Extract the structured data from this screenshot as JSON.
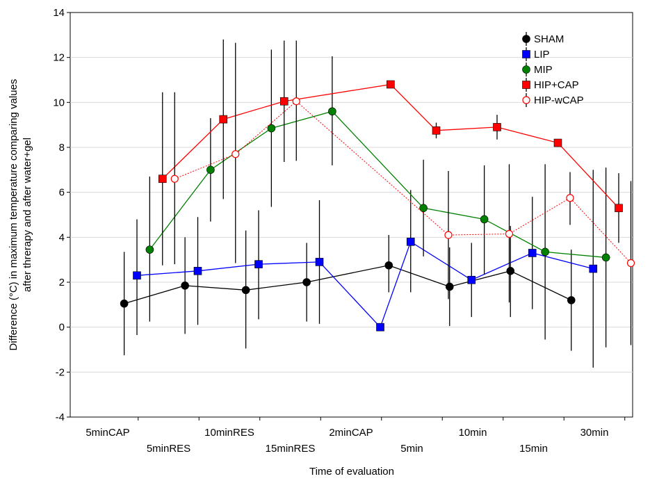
{
  "chart_data": {
    "type": "line",
    "title": "",
    "xlabel": "Time of evaluation",
    "ylabel_lines": [
      "Difference (°C) in maximum temperature comparing values",
      "after threrapy and after water+gel"
    ],
    "ylim": [
      -4,
      14
    ],
    "yticks": [
      -4,
      -2,
      0,
      2,
      4,
      6,
      8,
      10,
      12,
      14
    ],
    "ytick_labels": [
      "-4",
      "-2",
      "0",
      "2",
      "4",
      "6",
      "8",
      "10",
      "12",
      "14"
    ],
    "categories": [
      "5minCAP",
      "5minRES",
      "10minRES",
      "15minRES",
      "2minCAP",
      "5min",
      "10min",
      "15min",
      "30min"
    ],
    "grid": true,
    "legend_position": "top-right",
    "error_bars": "vertical whiskers",
    "series": [
      {
        "name": "SHAM",
        "color": "#000000",
        "marker": "circle-filled",
        "line_style": "solid",
        "points": [
          {
            "x": 0.27,
            "y": 1.05,
            "lo": -1.25,
            "hi": 3.35
          },
          {
            "x": 1.27,
            "y": 1.85,
            "lo": -0.3,
            "hi": 4.0
          },
          {
            "x": 2.27,
            "y": 1.65,
            "lo": -0.95,
            "hi": 4.3
          },
          {
            "x": 3.27,
            "y": 2.0,
            "lo": 0.25,
            "hi": 3.75
          },
          {
            "x": 4.62,
            "y": 2.75,
            "lo": 1.55,
            "hi": 4.1
          },
          {
            "x": 5.62,
            "y": 1.8,
            "lo": 0.05,
            "hi": 3.55
          },
          {
            "x": 6.62,
            "y": 2.5,
            "lo": 0.45,
            "hi": 4.5
          },
          {
            "x": 7.62,
            "y": 1.2,
            "lo": -1.05,
            "hi": 3.45
          }
        ]
      },
      {
        "name": "LIP",
        "color": "#0000ff",
        "marker": "square-filled",
        "line_style": "solid",
        "points": [
          {
            "x": 0.48,
            "y": 2.3,
            "lo": -0.35,
            "hi": 4.8
          },
          {
            "x": 1.48,
            "y": 2.5,
            "lo": 0.1,
            "hi": 4.9
          },
          {
            "x": 2.48,
            "y": 2.8,
            "lo": 0.35,
            "hi": 5.2
          },
          {
            "x": 3.48,
            "y": 2.9,
            "lo": 0.15,
            "hi": 5.65
          },
          {
            "x": 4.48,
            "y": 0.0,
            "lo": 0.0,
            "hi": 0.0
          },
          {
            "x": 4.98,
            "y": 3.8,
            "lo": 1.55,
            "hi": 6.1
          },
          {
            "x": 5.98,
            "y": 2.1,
            "lo": 0.45,
            "hi": 3.75
          },
          {
            "x": 6.98,
            "y": 3.3,
            "lo": 0.8,
            "hi": 5.8
          },
          {
            "x": 7.98,
            "y": 2.6,
            "lo": -1.8,
            "hi": 7.0
          }
        ]
      },
      {
        "name": "MIP",
        "color": "#008000",
        "marker": "circle-filled",
        "line_style": "solid",
        "points": [
          {
            "x": 0.69,
            "y": 3.45,
            "lo": 0.25,
            "hi": 6.7
          },
          {
            "x": 1.69,
            "y": 7.0,
            "lo": 4.7,
            "hi": 9.3
          },
          {
            "x": 2.69,
            "y": 8.85,
            "lo": 5.35,
            "hi": 12.35
          },
          {
            "x": 3.69,
            "y": 9.6,
            "lo": 7.2,
            "hi": 12.05
          },
          {
            "x": 5.19,
            "y": 5.3,
            "lo": 3.15,
            "hi": 7.45
          },
          {
            "x": 6.19,
            "y": 4.8,
            "lo": 2.35,
            "hi": 7.2
          },
          {
            "x": 7.19,
            "y": 3.35,
            "lo": -0.55,
            "hi": 7.25
          },
          {
            "x": 8.19,
            "y": 3.1,
            "lo": -0.9,
            "hi": 7.1
          }
        ]
      },
      {
        "name": "HIP+CAP",
        "color": "#ff0000",
        "marker": "square-filled",
        "line_style": "solid",
        "points": [
          {
            "x": 0.9,
            "y": 6.6,
            "lo": 2.75,
            "hi": 10.45
          },
          {
            "x": 1.9,
            "y": 9.25,
            "lo": 5.7,
            "hi": 12.8
          },
          {
            "x": 2.9,
            "y": 10.05,
            "lo": 7.35,
            "hi": 12.75
          },
          {
            "x": 4.65,
            "y": 10.8,
            "lo": 10.8,
            "hi": 10.8
          },
          {
            "x": 5.4,
            "y": 8.75,
            "lo": 8.4,
            "hi": 9.1
          },
          {
            "x": 6.4,
            "y": 8.9,
            "lo": 8.35,
            "hi": 9.45
          },
          {
            "x": 7.4,
            "y": 8.2,
            "lo": 8.2,
            "hi": 8.2
          },
          {
            "x": 8.4,
            "y": 5.3,
            "lo": 3.75,
            "hi": 6.85
          }
        ]
      },
      {
        "name": "HIP-wCAP",
        "color": "#ff0000",
        "marker": "circle-open",
        "line_style": "dotted",
        "points": [
          {
            "x": 1.1,
            "y": 6.6,
            "lo": 2.8,
            "hi": 10.45
          },
          {
            "x": 2.1,
            "y": 7.7,
            "lo": 2.85,
            "hi": 12.65
          },
          {
            "x": 3.1,
            "y": 10.05,
            "lo": 7.4,
            "hi": 12.75
          },
          {
            "x": 5.6,
            "y": 4.1,
            "lo": 1.25,
            "hi": 6.95
          },
          {
            "x": 6.6,
            "y": 4.15,
            "lo": 1.1,
            "hi": 7.25
          },
          {
            "x": 7.6,
            "y": 5.75,
            "lo": 4.55,
            "hi": 6.9
          },
          {
            "x": 8.6,
            "y": 2.85,
            "lo": -0.8,
            "hi": 6.5
          }
        ]
      }
    ]
  }
}
